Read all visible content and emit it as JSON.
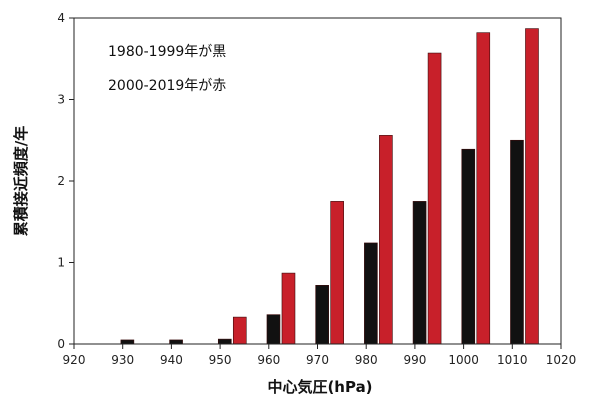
{
  "chart_data": {
    "type": "bar",
    "title": "",
    "xlabel": "中心気圧(hPa)",
    "ylabel": "累積接近頻度/年",
    "x_ticks": [
      920,
      930,
      940,
      950,
      960,
      970,
      980,
      990,
      1000,
      1010,
      1020
    ],
    "y_ticks": [
      0,
      1,
      2,
      3,
      4
    ],
    "xlim": [
      920,
      1020
    ],
    "ylim": [
      0,
      4
    ],
    "grid": false,
    "legend_position": "top-left",
    "legend_lines": [
      "1980-1999年が黒",
      "2000-2019年が赤"
    ],
    "x": [
      932.5,
      942.5,
      952.5,
      962.5,
      972.5,
      982.5,
      992.5,
      1002.5,
      1012.5
    ],
    "series": [
      {
        "name": "1980-1999",
        "color": "#111111",
        "values": [
          0.05,
          0.05,
          0.06,
          0.36,
          0.72,
          1.24,
          1.75,
          2.39,
          2.5
        ]
      },
      {
        "name": "2000-2019",
        "color": "#c8202a",
        "values": [
          0.0,
          0.0,
          0.33,
          0.87,
          1.75,
          2.56,
          3.57,
          3.82,
          3.87
        ]
      }
    ]
  }
}
